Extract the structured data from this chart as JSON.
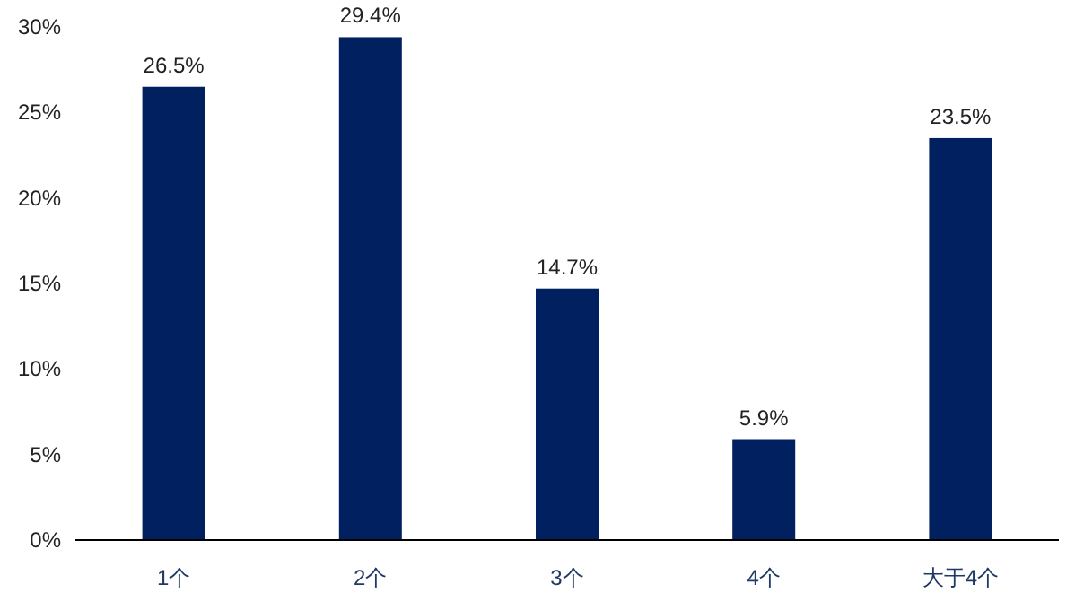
{
  "chart_data": {
    "type": "bar",
    "categories": [
      "1个",
      "2个",
      "3个",
      "4个",
      "大于4个"
    ],
    "values": [
      26.5,
      29.4,
      14.7,
      5.9,
      23.5
    ],
    "value_labels": [
      "26.5%",
      "29.4%",
      "14.7%",
      "5.9%",
      "23.5%"
    ],
    "color": "#002060",
    "ylim": [
      0,
      30
    ],
    "yticks": [
      {
        "value": 0,
        "label": "0%"
      },
      {
        "value": 5,
        "label": "5%"
      },
      {
        "value": 10,
        "label": "10%"
      },
      {
        "value": 15,
        "label": "15%"
      },
      {
        "value": 20,
        "label": "20%"
      },
      {
        "value": 25,
        "label": "25%"
      },
      {
        "value": 30,
        "label": "30%"
      }
    ],
    "grid": false
  }
}
